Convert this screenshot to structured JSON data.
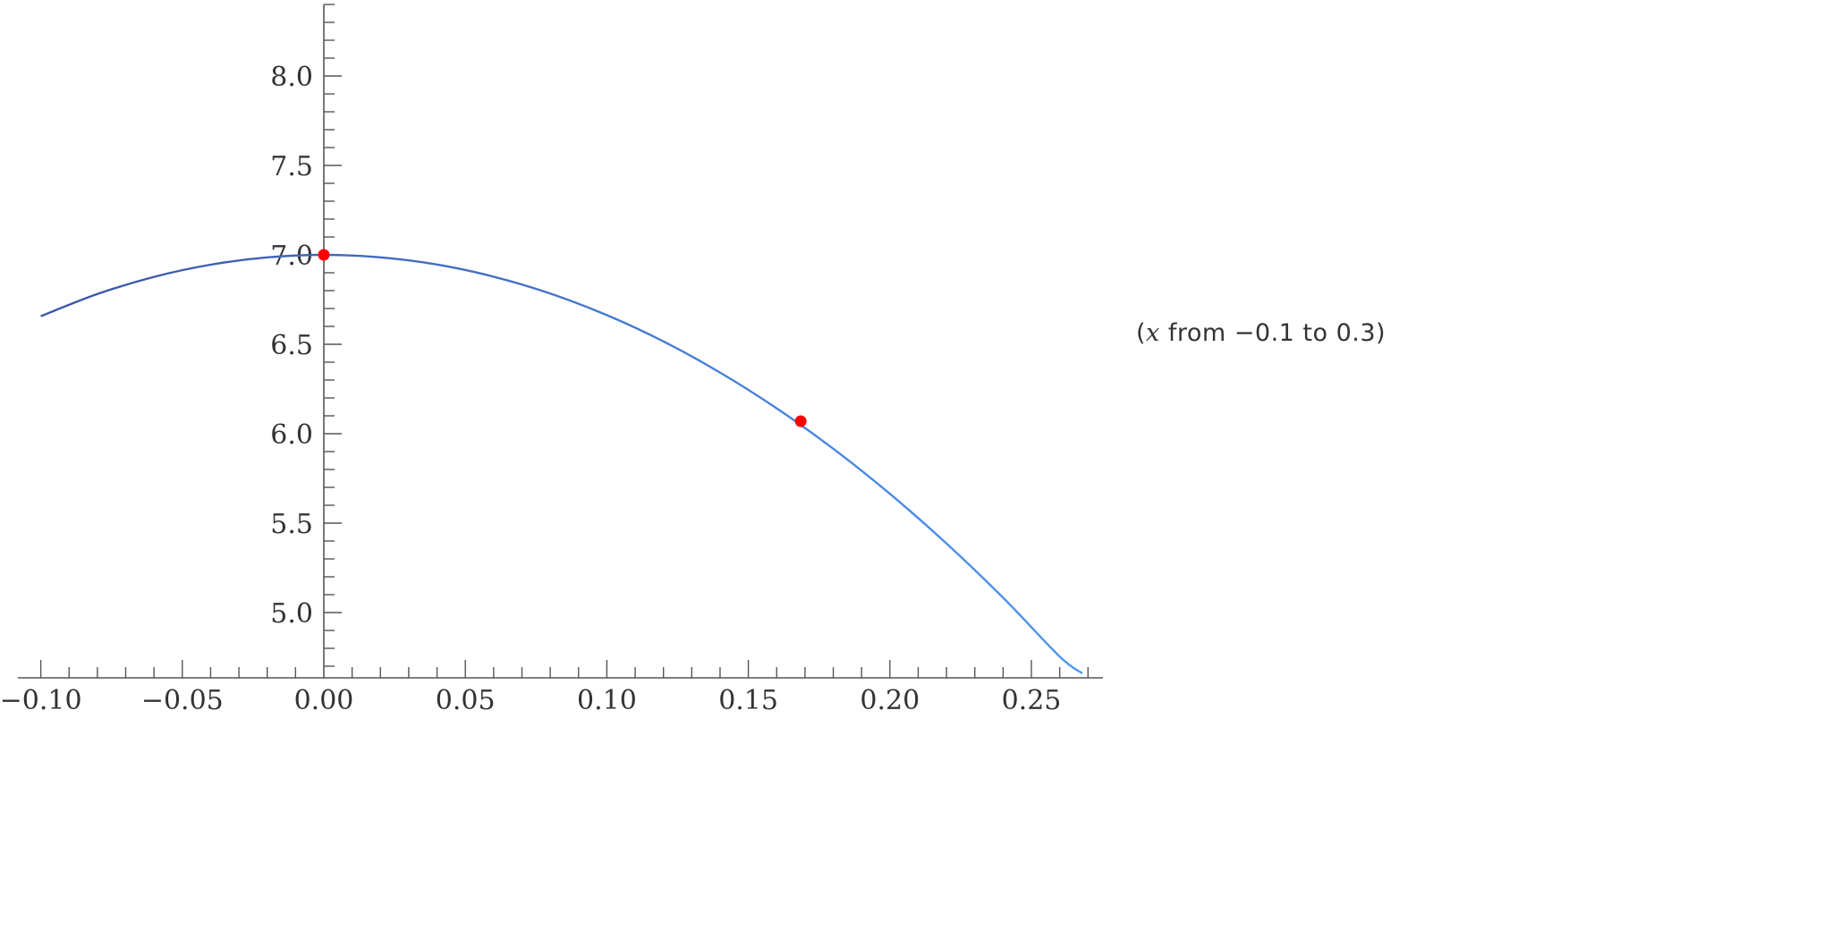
{
  "chart_data": {
    "type": "line",
    "title": "",
    "xlabel": "",
    "ylabel": "",
    "xlim": [
      -0.1,
      0.27
    ],
    "ylim": [
      4.635,
      8.4
    ],
    "grid": false,
    "x_ticks": [
      "-0.10",
      "-0.05",
      "0.00",
      "0.05",
      "0.10",
      "0.15",
      "0.20",
      "0.25"
    ],
    "x_tick_values": [
      -0.1,
      -0.05,
      0,
      0.05,
      0.1,
      0.15,
      0.2,
      0.25
    ],
    "y_ticks": [
      "5.0",
      "5.5",
      "6.0",
      "6.5",
      "7.0",
      "7.5",
      "8.0"
    ],
    "y_tick_values": [
      5.0,
      5.5,
      6.0,
      6.5,
      7.0,
      7.5,
      8.0
    ],
    "series": [
      {
        "x": [
          -0.1,
          -0.08,
          -0.06,
          -0.04,
          -0.02,
          0,
          0.02,
          0.04,
          0.06,
          0.08,
          0.1,
          0.12,
          0.14,
          0.16,
          0.18,
          0.2,
          0.22,
          0.24,
          0.26,
          0.268
        ],
        "y": [
          6.657,
          6.781,
          6.877,
          6.945,
          6.986,
          7.0,
          6.986,
          6.946,
          6.878,
          6.784,
          6.663,
          6.516,
          6.342,
          6.142,
          5.916,
          5.664,
          5.386,
          5.083,
          4.754,
          4.66
        ],
        "color_start": "#3b55a6",
        "color_end": "#4f97f2"
      }
    ],
    "points": [
      {
        "x": 0,
        "y": 7.0
      },
      {
        "x": 0.1685,
        "y": 6.07
      }
    ],
    "point_color": "#ff0000",
    "annotation": {
      "open": "(",
      "var": "x",
      "text": " from −0.1 to 0.3)"
    }
  }
}
